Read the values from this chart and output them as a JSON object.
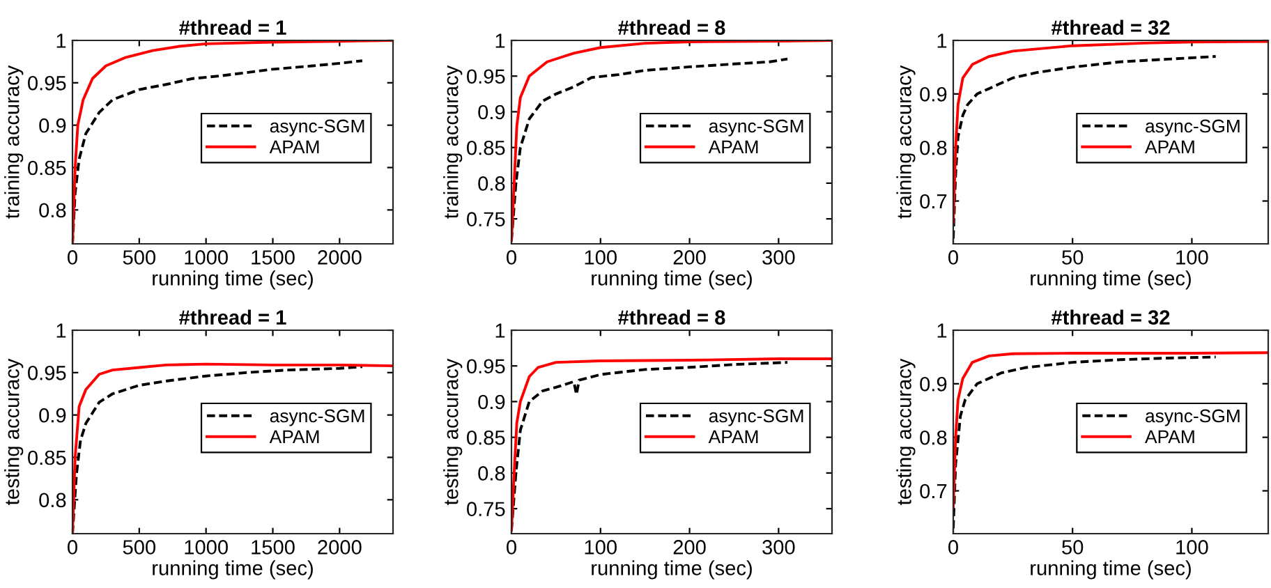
{
  "chart_data": [
    {
      "type": "line",
      "title": "#thread = 1",
      "xlabel": "running time (sec)",
      "ylabel": "training accuracy",
      "xlim": [
        0,
        2400
      ],
      "xticks": [
        0,
        500,
        1000,
        1500,
        2000
      ],
      "ylim": [
        0.76,
        1
      ],
      "yticks": [
        0.8,
        0.85,
        0.9,
        0.95,
        1
      ],
      "legend": "right",
      "grid": false,
      "series": [
        {
          "name": "async-SGM",
          "color": "#000000",
          "line_style": "dashed",
          "x": [
            0,
            20,
            50,
            100,
            200,
            300,
            500,
            700,
            900,
            1100,
            1300,
            1500,
            1800,
            2000,
            2170
          ],
          "values": [
            0.76,
            0.82,
            0.86,
            0.89,
            0.915,
            0.93,
            0.942,
            0.948,
            0.955,
            0.958,
            0.962,
            0.966,
            0.97,
            0.973,
            0.976
          ]
        },
        {
          "name": "APAM",
          "color": "#ff0000",
          "line_style": "solid",
          "x": [
            0,
            20,
            40,
            80,
            150,
            250,
            400,
            600,
            800,
            1000,
            1500,
            2000,
            2400
          ],
          "values": [
            0.76,
            0.85,
            0.9,
            0.93,
            0.955,
            0.97,
            0.98,
            0.988,
            0.993,
            0.996,
            0.998,
            0.999,
            1
          ]
        }
      ]
    },
    {
      "type": "line",
      "title": "#thread = 8",
      "xlabel": "running time (sec)",
      "ylabel": "training accuracy",
      "xlim": [
        0,
        360
      ],
      "xticks": [
        0,
        100,
        200,
        300
      ],
      "ylim": [
        0.715,
        1
      ],
      "yticks": [
        0.75,
        0.8,
        0.85,
        0.9,
        0.95,
        1
      ],
      "legend": "right",
      "grid": false,
      "series": [
        {
          "name": "async-SGM",
          "color": "#000000",
          "line_style": "dashed",
          "x": [
            0,
            5,
            10,
            20,
            35,
            50,
            70,
            90,
            120,
            150,
            200,
            250,
            290,
            310
          ],
          "values": [
            0.72,
            0.8,
            0.85,
            0.89,
            0.915,
            0.925,
            0.935,
            0.948,
            0.952,
            0.958,
            0.963,
            0.967,
            0.97,
            0.974
          ]
        },
        {
          "name": "APAM",
          "color": "#ff0000",
          "line_style": "solid",
          "x": [
            0,
            3,
            6,
            10,
            20,
            40,
            70,
            100,
            150,
            200,
            300,
            360
          ],
          "values": [
            0.72,
            0.8,
            0.88,
            0.92,
            0.95,
            0.97,
            0.982,
            0.99,
            0.996,
            0.998,
            0.999,
            1
          ]
        }
      ]
    },
    {
      "type": "line",
      "title": "#thread = 32",
      "xlabel": "running time (sec)",
      "ylabel": "training accuracy",
      "xlim": [
        0,
        132
      ],
      "xticks": [
        0,
        50,
        100
      ],
      "ylim": [
        0.62,
        1
      ],
      "yticks": [
        0.7,
        0.8,
        0.9,
        1
      ],
      "legend": "right",
      "grid": false,
      "series": [
        {
          "name": "async-SGM",
          "color": "#000000",
          "line_style": "dashed",
          "x": [
            0,
            1,
            2,
            4,
            6,
            10,
            15,
            25,
            35,
            50,
            70,
            90,
            110
          ],
          "values": [
            0.63,
            0.75,
            0.82,
            0.86,
            0.88,
            0.9,
            0.91,
            0.93,
            0.94,
            0.95,
            0.96,
            0.965,
            0.97
          ]
        },
        {
          "name": "APAM",
          "color": "#ff0000",
          "line_style": "solid",
          "x": [
            0,
            1,
            2,
            4,
            8,
            15,
            25,
            50,
            80,
            100,
            132
          ],
          "values": [
            0.66,
            0.8,
            0.88,
            0.93,
            0.955,
            0.97,
            0.98,
            0.99,
            0.995,
            0.997,
            0.998
          ]
        }
      ]
    },
    {
      "type": "line",
      "title": "#thread = 1",
      "xlabel": "running time (sec)",
      "ylabel": "testing accuracy",
      "xlim": [
        0,
        2400
      ],
      "xticks": [
        0,
        500,
        1000,
        1500,
        2000
      ],
      "ylim": [
        0.76,
        1
      ],
      "yticks": [
        0.8,
        0.85,
        0.9,
        0.95,
        1
      ],
      "legend": "right",
      "grid": false,
      "series": [
        {
          "name": "async-SGM",
          "color": "#000000",
          "line_style": "dashed",
          "x": [
            0,
            30,
            60,
            100,
            200,
            300,
            500,
            700,
            1000,
            1300,
            1600,
            2000,
            2170
          ],
          "values": [
            0.76,
            0.83,
            0.87,
            0.89,
            0.915,
            0.925,
            0.935,
            0.94,
            0.946,
            0.95,
            0.953,
            0.955,
            0.957
          ]
        },
        {
          "name": "APAM",
          "color": "#ff0000",
          "line_style": "solid",
          "x": [
            0,
            20,
            50,
            100,
            200,
            300,
            500,
            700,
            1000,
            1500,
            2000,
            2400
          ],
          "values": [
            0.76,
            0.85,
            0.91,
            0.93,
            0.948,
            0.953,
            0.956,
            0.959,
            0.96,
            0.959,
            0.959,
            0.958
          ]
        }
      ]
    },
    {
      "type": "line",
      "title": "#thread = 8",
      "xlabel": "running time (sec)",
      "ylabel": "testing accuracy",
      "xlim": [
        0,
        360
      ],
      "xticks": [
        0,
        100,
        200,
        300
      ],
      "ylim": [
        0.715,
        1
      ],
      "yticks": [
        0.75,
        0.8,
        0.85,
        0.9,
        0.95,
        1
      ],
      "legend": "right",
      "grid": false,
      "series": [
        {
          "name": "async-SGM",
          "color": "#000000",
          "line_style": "dashed",
          "x": [
            0,
            5,
            10,
            20,
            35,
            50,
            70,
            73,
            76,
            100,
            150,
            200,
            250,
            310
          ],
          "values": [
            0.72,
            0.8,
            0.86,
            0.9,
            0.915,
            0.92,
            0.928,
            0.91,
            0.93,
            0.938,
            0.945,
            0.948,
            0.952,
            0.955
          ]
        },
        {
          "name": "APAM",
          "color": "#ff0000",
          "line_style": "solid",
          "x": [
            0,
            3,
            6,
            10,
            20,
            30,
            50,
            100,
            200,
            300,
            360
          ],
          "values": [
            0.72,
            0.8,
            0.87,
            0.9,
            0.935,
            0.948,
            0.955,
            0.957,
            0.958,
            0.96,
            0.96
          ]
        }
      ]
    },
    {
      "type": "line",
      "title": "#thread = 32",
      "xlabel": "running time (sec)",
      "ylabel": "testing accuracy",
      "xlim": [
        0,
        132
      ],
      "xticks": [
        0,
        50,
        100
      ],
      "ylim": [
        0.62,
        1
      ],
      "yticks": [
        0.7,
        0.8,
        0.9,
        1
      ],
      "legend": "right",
      "grid": false,
      "series": [
        {
          "name": "async-SGM",
          "color": "#000000",
          "line_style": "dashed",
          "x": [
            0,
            1,
            3,
            5,
            10,
            20,
            30,
            50,
            70,
            90,
            110
          ],
          "values": [
            0.63,
            0.75,
            0.84,
            0.87,
            0.9,
            0.92,
            0.93,
            0.94,
            0.945,
            0.948,
            0.95
          ]
        },
        {
          "name": "APAM",
          "color": "#ff0000",
          "line_style": "solid",
          "x": [
            0,
            1,
            2,
            4,
            8,
            15,
            25,
            50,
            100,
            132
          ],
          "values": [
            0.67,
            0.8,
            0.87,
            0.91,
            0.94,
            0.952,
            0.956,
            0.957,
            0.957,
            0.958
          ]
        }
      ]
    }
  ]
}
